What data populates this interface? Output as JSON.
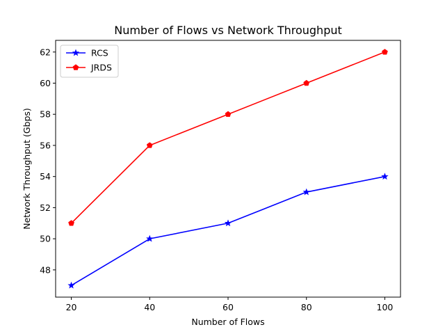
{
  "chart_data": {
    "type": "line",
    "title": "Number of Flows vs Network Throughput",
    "xlabel": "Number of Flows",
    "ylabel": "Network Throughput (Gbps)",
    "x": [
      20,
      40,
      60,
      80,
      100
    ],
    "xlim": [
      16,
      104
    ],
    "ylim": [
      46.25,
      62.75
    ],
    "xticks": [
      "20",
      "40",
      "60",
      "80",
      "100"
    ],
    "yticks": [
      "48",
      "50",
      "52",
      "54",
      "56",
      "58",
      "60",
      "62"
    ],
    "grid": false,
    "legend_position": "upper-left",
    "series": [
      {
        "name": "RCS",
        "color": "#0000ff",
        "marker": "star",
        "values": [
          47,
          50,
          51,
          53,
          54
        ]
      },
      {
        "name": "JRDS",
        "color": "#ff0000",
        "marker": "pentagon",
        "values": [
          51,
          56,
          58,
          60,
          62
        ]
      }
    ]
  }
}
